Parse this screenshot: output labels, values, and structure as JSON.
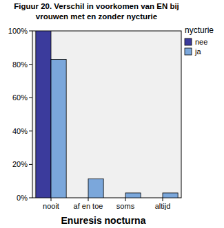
{
  "chart_data": {
    "type": "bar",
    "title": "Figuur 20. Verschil in voorkomen van EN bij vrouwen met en zonder nycturie",
    "x_label": "Enuresis nocturna",
    "legend_title": "nycturie",
    "legend": "right",
    "categories": [
      "nooit",
      "af en toe",
      "soms",
      "altijd"
    ],
    "series": [
      {
        "name": "nee",
        "color": "#3b3b9c",
        "values": [
          100,
          0,
          0,
          0
        ]
      },
      {
        "name": "ja",
        "color": "#7ba7db",
        "values": [
          82.9,
          11.4,
          2.9,
          2.9
        ]
      }
    ],
    "ylim": [
      0,
      100
    ],
    "yticks": [
      {
        "value": 0,
        "label": "0%"
      },
      {
        "value": 20,
        "label": "20%"
      },
      {
        "value": 40,
        "label": "40%"
      },
      {
        "value": 60,
        "label": "60%"
      },
      {
        "value": 80,
        "label": "80%"
      },
      {
        "value": 100,
        "label": "100%"
      }
    ],
    "grid": false
  }
}
